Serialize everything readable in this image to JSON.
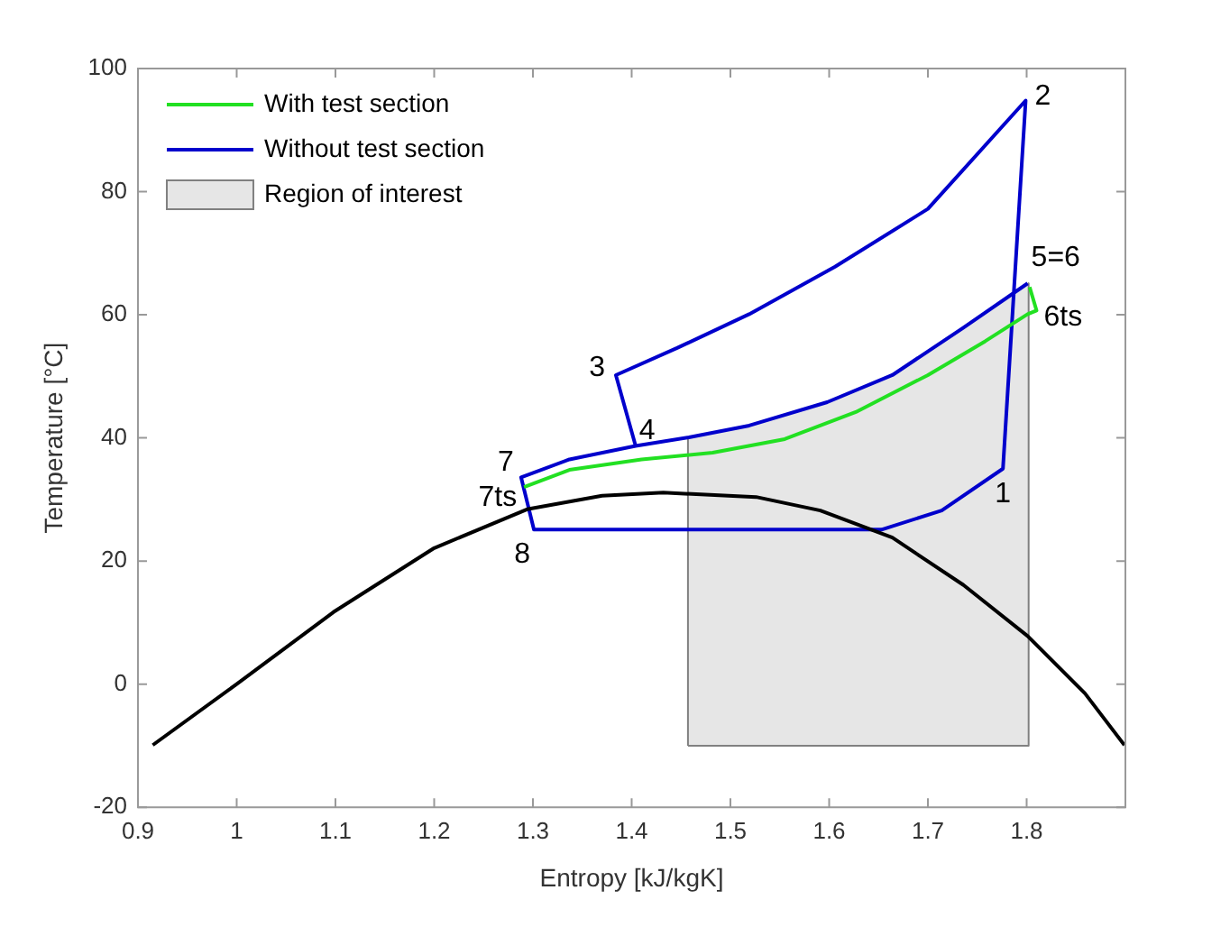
{
  "chart_data": {
    "type": "line",
    "xlabel": "Entropy [kJ/kgK]",
    "ylabel": "Temperature [°C]",
    "xlim": [
      0.9,
      1.9
    ],
    "xticks": [
      0.9,
      1,
      1.1,
      1.2,
      1.3,
      1.4,
      1.5,
      1.6,
      1.7,
      1.8
    ],
    "ylim": [
      -20,
      100
    ],
    "yticks": [
      -20,
      0,
      20,
      40,
      60,
      80,
      100
    ],
    "grid": false,
    "legend": "top left",
    "marker": "none",
    "line_style": "solid",
    "series": [
      {
        "type": "line",
        "color": "#000000",
        "x": [
          0.915,
          1.0,
          1.098,
          1.2,
          1.294,
          1.37,
          1.432,
          1.526,
          1.591,
          1.664,
          1.736,
          1.801,
          1.859,
          1.899
        ],
        "values": [
          -9.9,
          0,
          11.7,
          22.1,
          28.4,
          30.6,
          31.1,
          30.4,
          28.2,
          23.8,
          16.1,
          7.8,
          -1.5,
          -9.9
        ]
      },
      {
        "name": "With test section",
        "type": "line",
        "color": "#22e022",
        "x": [
          1.291,
          1.337,
          1.41,
          1.482,
          1.555,
          1.627,
          1.7,
          1.758,
          1.801,
          1.81,
          1.803
        ],
        "values": [
          32,
          34.8,
          36.5,
          37.6,
          39.8,
          44.2,
          50.2,
          55.7,
          60.1,
          60.7,
          64.5
        ]
      },
      {
        "name": "Without test section",
        "type": "line",
        "color": "#0000cc",
        "x": [
          1.801,
          1.736,
          1.664,
          1.598,
          1.519,
          1.458,
          1.404,
          1.337,
          1.288,
          1.301,
          1.653,
          1.714,
          1.776,
          1.799,
          1.7,
          1.606,
          1.519,
          1.446,
          1.384,
          1.404
        ],
        "values": [
          65.1,
          57.9,
          50.2,
          45.8,
          42,
          40.1,
          38.7,
          36.5,
          33.6,
          25.1,
          25.1,
          28.2,
          35,
          94.8,
          77.2,
          67.8,
          60.1,
          54.6,
          50.2,
          38.7
        ]
      },
      {
        "name": "Region of interest",
        "type": "area",
        "color": "#e6e6e6",
        "x": [
          1.457,
          1.457,
          1.519,
          1.598,
          1.664,
          1.736,
          1.802,
          1.802,
          1.457
        ],
        "values": [
          -10,
          40.1,
          42,
          45.8,
          50.2,
          57.9,
          65.1,
          -10,
          -10
        ]
      }
    ],
    "annotations": [
      {
        "text": "1",
        "x": 1.776,
        "y": 35
      },
      {
        "text": "2",
        "x": 1.799,
        "y": 94.8
      },
      {
        "text": "3",
        "x": 1.384,
        "y": 50.2
      },
      {
        "text": "4",
        "x": 1.404,
        "y": 38.7
      },
      {
        "text": "5=6",
        "x": 1.801,
        "y": 65.1
      },
      {
        "text": "6ts",
        "x": 1.81,
        "y": 60.7
      },
      {
        "text": "7",
        "x": 1.288,
        "y": 33.6
      },
      {
        "text": "7ts",
        "x": 1.291,
        "y": 32
      },
      {
        "text": "8",
        "x": 1.301,
        "y": 25.1
      }
    ]
  }
}
